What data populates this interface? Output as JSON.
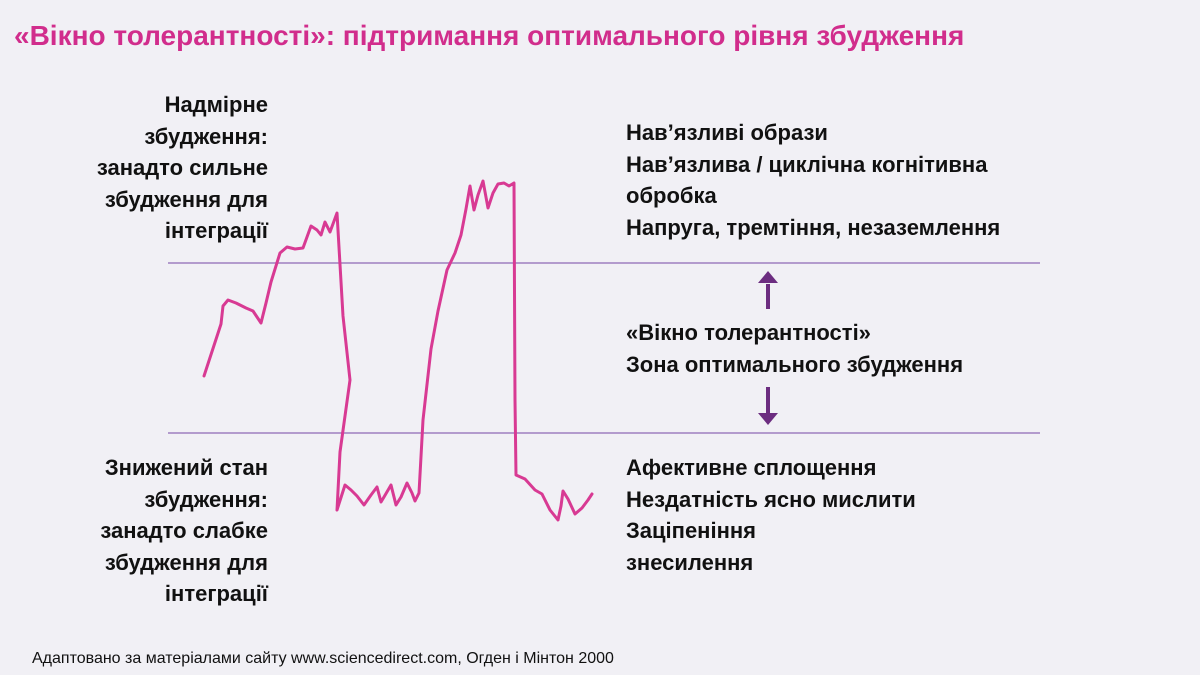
{
  "title": "«Вікно толерантності»: підтримання оптимального рівня збудження",
  "hyperarousal": {
    "label_lines": [
      "Надмірне",
      "збудження:",
      "занадто сильне",
      "збудження для",
      "інтеграції"
    ],
    "symptoms": [
      "Нав’язливі образи",
      "Нав’язлива / циклічна когнітивна",
      "обробка",
      "Напруга, тремтіння, незаземлення"
    ]
  },
  "window": {
    "label_lines": [
      "«Вікно толерантності»",
      "Зона оптимального збудження"
    ]
  },
  "hypoarousal": {
    "label_lines": [
      "Знижений стан",
      "збудження:",
      "занадто слабке",
      "збудження для",
      "інтеграції"
    ],
    "symptoms": [
      "Афективне сплощення",
      "Нездатність ясно мислити",
      "Заціпеніння",
      "знесилення"
    ]
  },
  "source": "Адаптовано за матеріалами сайту www.sciencedirect.com, Огден і Мінтон 2000",
  "colors": {
    "title": "#d12d8c",
    "arousal_line": "#d83a93",
    "boundary_lines": "#b39bcd",
    "arrows": "#6c2d80",
    "background": "#f1f0f5"
  }
}
